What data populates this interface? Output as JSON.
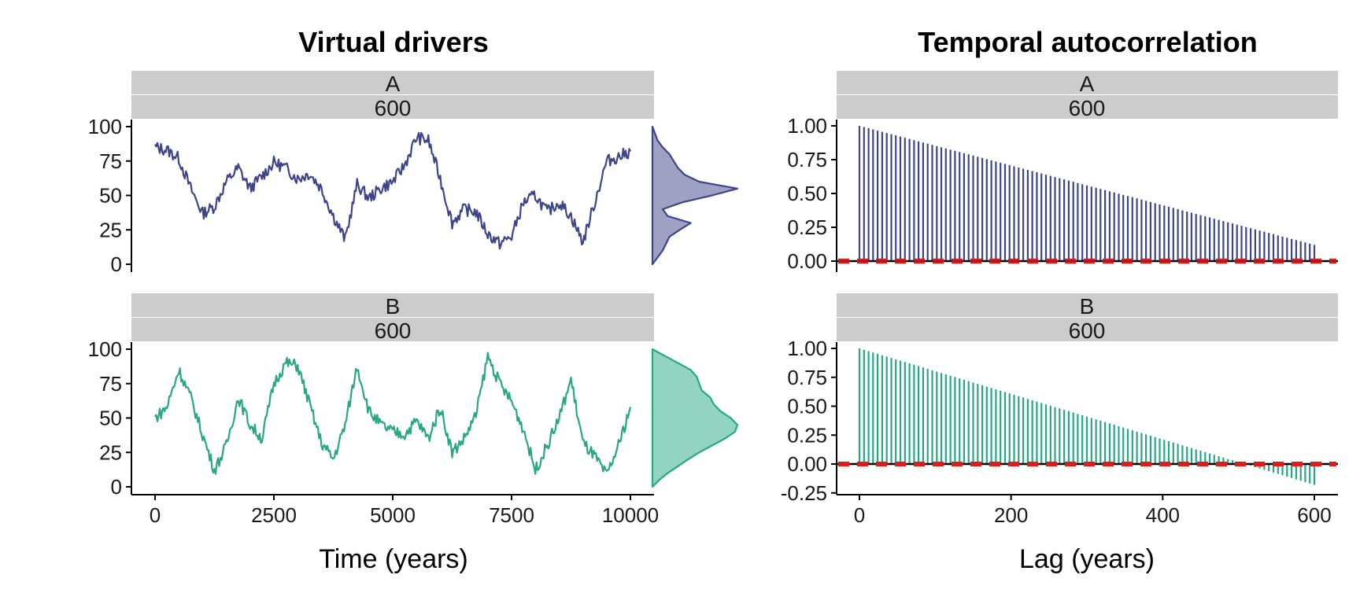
{
  "panels": {
    "left_title": "Virtual drivers",
    "right_title": "Temporal autocorrelation",
    "strip_drivers": [
      "A",
      "B"
    ],
    "strip_n": "600",
    "x_title_left": "Time (years)",
    "x_title_right": "Lag (years)"
  },
  "colors": {
    "driver_A": "#3E4489",
    "driver_A_fill": "#9EA1C4",
    "driver_B": "#27A885",
    "driver_B_fill": "#93D4C1",
    "ci_line": "#E31A1C",
    "strip_bg": "#CCCCCC"
  },
  "chart_data": [
    {
      "type": "line",
      "title": "Virtual drivers",
      "facet": [
        "A",
        "600"
      ],
      "xlabel": "",
      "ylabel": "",
      "xlim": [
        0,
        10000
      ],
      "ylim": [
        0,
        100
      ],
      "xticks": [
        "0",
        "2500",
        "5000",
        "7500",
        "10000"
      ],
      "yticks": [
        "0",
        "25",
        "50",
        "75",
        "100"
      ],
      "x": [
        0,
        250,
        500,
        750,
        1000,
        1250,
        1500,
        1750,
        2000,
        2250,
        2500,
        2750,
        3000,
        3250,
        3500,
        3750,
        4000,
        4250,
        4500,
        4750,
        5000,
        5250,
        5500,
        5750,
        6000,
        6250,
        6500,
        6750,
        7000,
        7250,
        7500,
        7750,
        8000,
        8250,
        8500,
        8750,
        9000,
        9250,
        9500,
        9750,
        10000
      ],
      "series": [
        {
          "values": [
            85,
            83,
            77,
            55,
            37,
            42,
            60,
            70,
            55,
            64,
            74,
            70,
            62,
            66,
            55,
            35,
            18,
            58,
            48,
            55,
            60,
            72,
            92,
            90,
            62,
            30,
            40,
            38,
            22,
            15,
            20,
            45,
            50,
            38,
            45,
            35,
            16,
            45,
            75,
            78,
            82
          ]
        }
      ],
      "density": {
        "type": "area",
        "y": [
          0,
          10,
          20,
          25,
          30,
          35,
          40,
          45,
          50,
          55,
          60,
          65,
          70,
          75,
          80,
          85,
          90,
          95,
          100
        ],
        "density": [
          0,
          0.12,
          0.2,
          0.32,
          0.45,
          0.18,
          0.12,
          0.35,
          0.7,
          1.0,
          0.55,
          0.38,
          0.3,
          0.25,
          0.2,
          0.12,
          0.06,
          0.03,
          0
        ]
      }
    },
    {
      "type": "line",
      "title": "",
      "facet": [
        "B",
        "600"
      ],
      "xlabel": "Time (years)",
      "ylabel": "",
      "xlim": [
        0,
        10000
      ],
      "ylim": [
        0,
        100
      ],
      "xticks": [
        "0",
        "2500",
        "5000",
        "7500",
        "10000"
      ],
      "yticks": [
        "0",
        "25",
        "50",
        "75",
        "100"
      ],
      "x": [
        0,
        250,
        500,
        750,
        1000,
        1250,
        1500,
        1750,
        2000,
        2250,
        2500,
        2750,
        3000,
        3250,
        3500,
        3750,
        4000,
        4250,
        4500,
        4750,
        5000,
        5250,
        5500,
        5750,
        6000,
        6250,
        6500,
        6750,
        7000,
        7250,
        7500,
        7750,
        8000,
        8250,
        8500,
        8750,
        9000,
        9250,
        9500,
        9750,
        10000
      ],
      "series": [
        {
          "values": [
            50,
            58,
            85,
            65,
            38,
            12,
            30,
            65,
            45,
            35,
            75,
            90,
            88,
            60,
            32,
            20,
            45,
            88,
            55,
            45,
            40,
            38,
            48,
            35,
            58,
            25,
            35,
            52,
            95,
            75,
            62,
            42,
            12,
            30,
            50,
            78,
            32,
            22,
            8,
            30,
            58
          ]
        }
      ],
      "density": {
        "type": "area",
        "y": [
          0,
          5,
          10,
          15,
          20,
          25,
          30,
          35,
          40,
          45,
          50,
          55,
          60,
          65,
          70,
          75,
          80,
          85,
          90,
          95,
          100
        ],
        "density": [
          0,
          0.08,
          0.18,
          0.3,
          0.42,
          0.55,
          0.7,
          0.85,
          0.97,
          1.0,
          0.92,
          0.8,
          0.72,
          0.68,
          0.58,
          0.55,
          0.52,
          0.45,
          0.3,
          0.15,
          0
        ]
      }
    },
    {
      "type": "bar",
      "title": "Temporal autocorrelation",
      "facet": [
        "A",
        "600"
      ],
      "xlabel": "",
      "ylabel": "",
      "xlim": [
        0,
        600
      ],
      "ylim": [
        0,
        1
      ],
      "xticks": [],
      "yticks": [
        "0.00",
        "0.25",
        "0.50",
        "0.75",
        "1.00"
      ],
      "lag_start": 0,
      "lag_step": 6,
      "lag_count": 101,
      "acf_first": 1.0,
      "acf_last": 0.12,
      "ci": [
        -0.01,
        0.01
      ]
    },
    {
      "type": "bar",
      "title": "",
      "facet": [
        "B",
        "600"
      ],
      "xlabel": "Lag (years)",
      "ylabel": "",
      "xlim": [
        0,
        600
      ],
      "ylim": [
        -0.25,
        1
      ],
      "xticks": [
        "0",
        "200",
        "400",
        "600"
      ],
      "yticks": [
        "-0.25",
        "0.00",
        "0.25",
        "0.50",
        "0.75",
        "1.00"
      ],
      "lag_start": 0,
      "lag_step": 6,
      "lag_count": 101,
      "acf_first": 1.0,
      "acf_last": -0.18,
      "ci": [
        -0.01,
        0.01
      ]
    }
  ]
}
